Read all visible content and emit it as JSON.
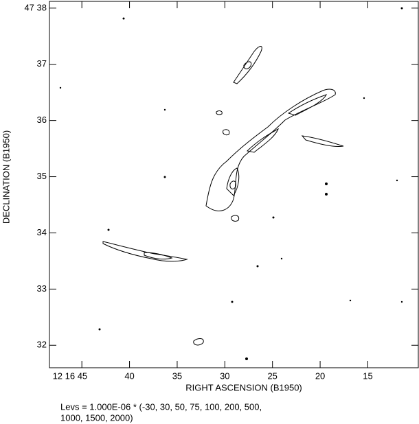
{
  "chart_data": {
    "type": "contour",
    "xlabel": "RIGHT ASCENSION (B1950)",
    "ylabel": "DECLINATION (B1950)",
    "xlim": [
      48.4,
      9.7
    ],
    "ylim": [
      31.6,
      38.12
    ],
    "xticks": [
      {
        "value": 45,
        "label": "12 16 45"
      },
      40,
      35,
      30,
      25,
      20,
      15
    ],
    "yticks": [
      32,
      33,
      34,
      35,
      36,
      37,
      {
        "value": 38,
        "label": "47 38"
      }
    ],
    "caption_lines": [
      "Levs = 1.000E-06 * (-30, 30, 50, 75, 100, 200, 500,",
      "1000, 1500, 2000)"
    ]
  }
}
